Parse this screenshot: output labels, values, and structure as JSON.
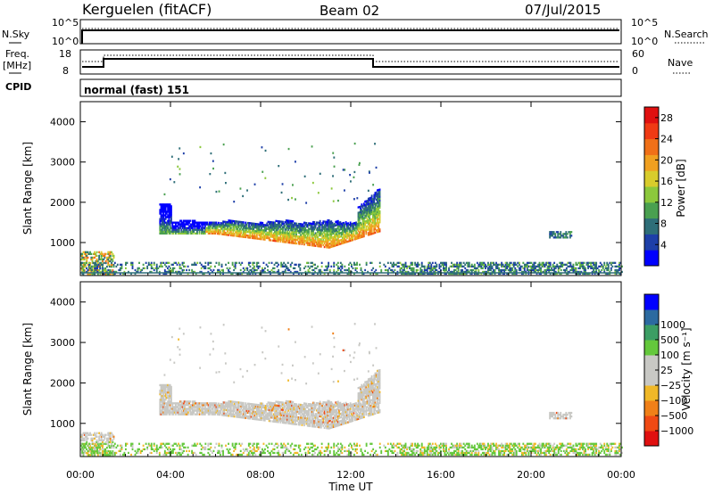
{
  "header": {
    "station": "Kerguelen (fitACF)",
    "beam": "Beam 02",
    "date": "07/Jul/2015"
  },
  "strip_nsky": {
    "left_label": "N.Sky",
    "right_label": "N.Search",
    "left_ticks": [
      "10^5",
      "10^0"
    ],
    "right_ticks": [
      "10^5",
      "10^0"
    ]
  },
  "strip_freq": {
    "left_label_line1": "Freq.",
    "left_label_line2": "[MHz]",
    "right_label": "Nave",
    "left_ticks": [
      "18",
      "8"
    ],
    "right_ticks": [
      "60",
      "0"
    ]
  },
  "cpid": {
    "label": "CPID",
    "value": "normal (fast) 151"
  },
  "colors": {
    "power": [
      "#0000ff",
      "#1e3fa8",
      "#2e6e78",
      "#4aa050",
      "#8cc83c",
      "#d8cc2c",
      "#f0a020",
      "#f07018",
      "#f03a14",
      "#e01010"
    ],
    "velocity": [
      "#e01010",
      "#f04a14",
      "#f08018",
      "#f0b828",
      "#c8c8c4",
      "#c8c8c4",
      "#64c83c",
      "#3c9e64",
      "#2c6aa0",
      "#0000ff"
    ]
  },
  "chart_data": [
    {
      "type": "heatmap",
      "name": "power",
      "ylabel": "Slant Range [km]",
      "yticks": [
        "1000",
        "2000",
        "3000",
        "4000"
      ],
      "ylim": [
        180,
        4500
      ],
      "xlim": [
        0,
        24
      ],
      "colorbar_label": "Power [dB]",
      "colorbar_ticks": [
        "4",
        "8",
        "12",
        "16",
        "20",
        "24",
        "28"
      ],
      "colorbar_range": [
        0,
        30
      ]
    },
    {
      "type": "heatmap",
      "name": "velocity",
      "ylabel": "Slant Range [km]",
      "yticks": [
        "1000",
        "2000",
        "3000",
        "4000"
      ],
      "ylim": [
        180,
        4500
      ],
      "xlim": [
        0,
        24
      ],
      "colorbar_label": "Velocity [m s⁻¹]",
      "colorbar_ticks": [
        "-1000",
        "-500",
        "-100",
        "-25",
        "25",
        "100",
        "500",
        "1000"
      ],
      "xlabel": "Time UT",
      "xticks": [
        "00:00",
        "04:00",
        "08:00",
        "12:00",
        "16:00",
        "20:00",
        "00:00"
      ]
    }
  ]
}
